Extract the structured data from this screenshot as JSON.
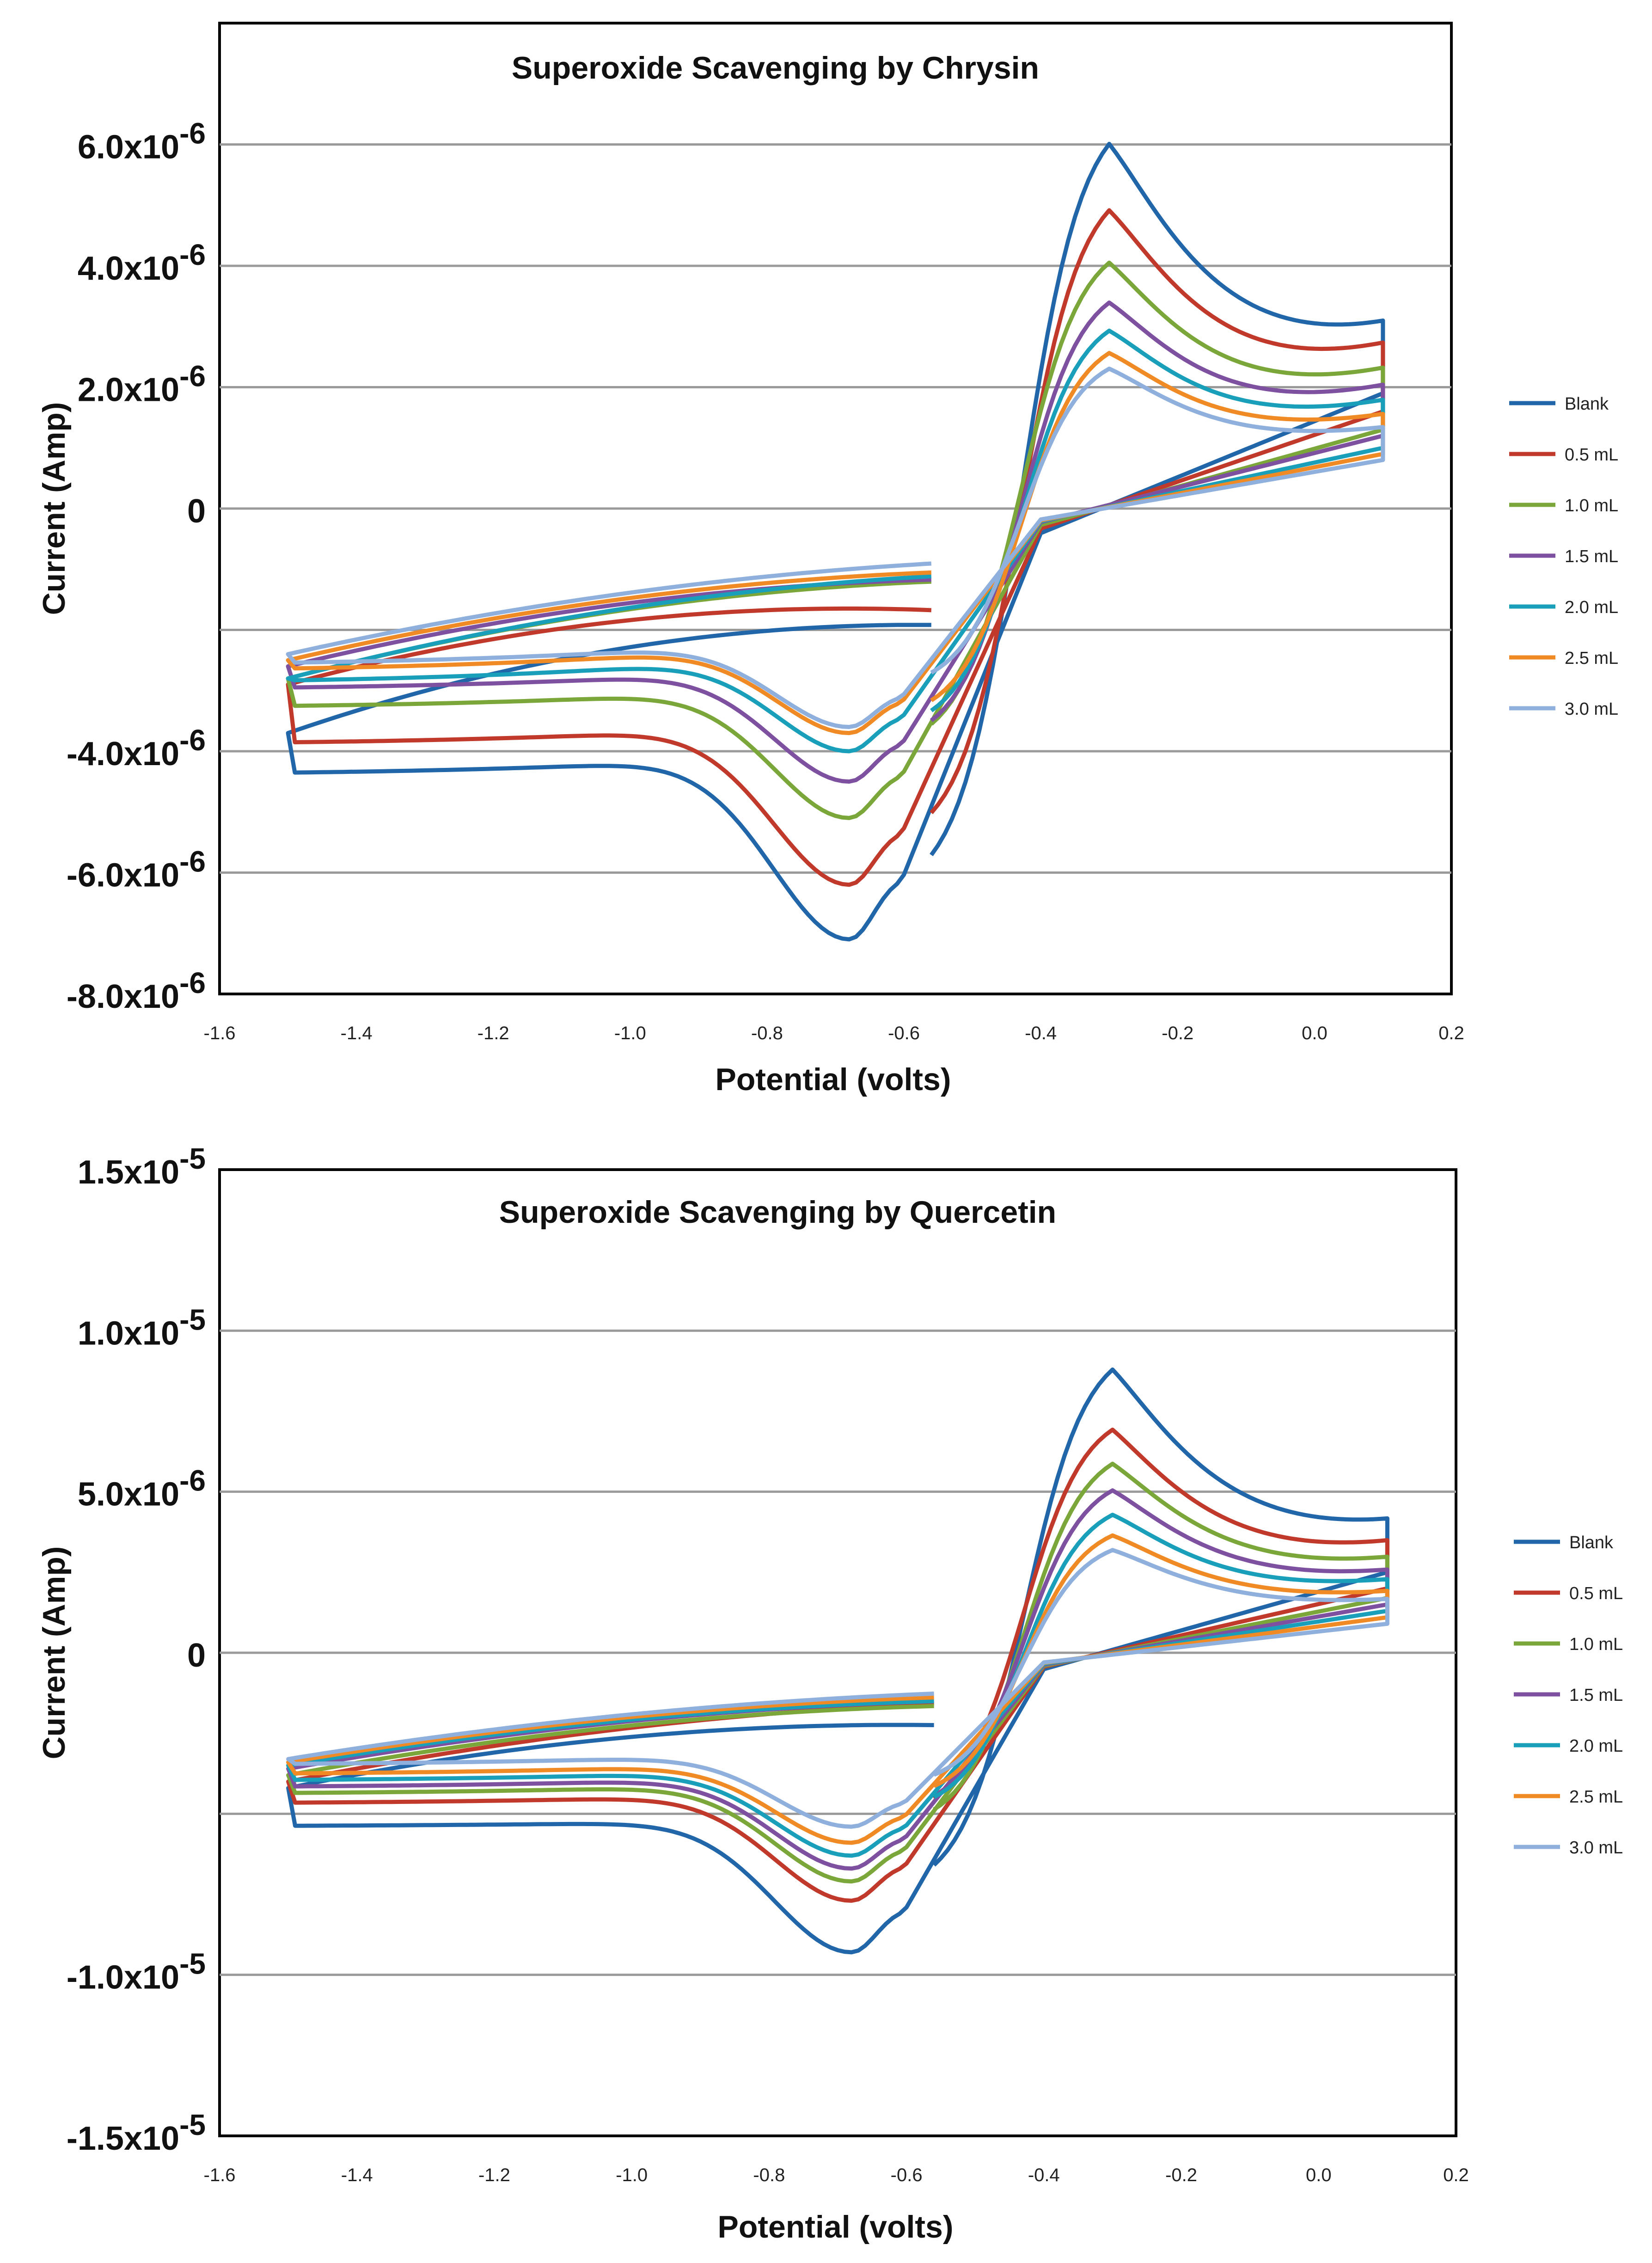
{
  "colors": {
    "Blank": "#2266aa",
    "0.5 mL": "#c0392b",
    "1.0 mL": "#7aa63a",
    "1.5 mL": "#7e50a0",
    "2.0 mL": "#1a9fba",
    "2.5 mL": "#f08a24",
    "3.0 mL": "#8fb0dd"
  },
  "chart_data": [
    {
      "type": "line",
      "title": "Superoxide Scavenging by Chrysin",
      "xlabel": "Potential (volts)",
      "ylabel": "Current (Amp)",
      "xlim": [
        -1.6,
        0.2
      ],
      "ylim": [
        -8e-06,
        8e-06
      ],
      "xticks": [
        -1.6,
        -1.4,
        -1.2,
        -1.0,
        -0.8,
        -0.6,
        -0.4,
        -0.2,
        0.0,
        0.2
      ],
      "xtick_labels": [
        "-1.6",
        "-1.4",
        "-1.2",
        "-1.0",
        "-0.8",
        "-0.6",
        "-0.4",
        "-0.2",
        "0.0",
        "0.2"
      ],
      "yticks": [
        {
          "value": 6e-06,
          "mant": "6.0x10",
          "exp": "-6"
        },
        {
          "value": 4e-06,
          "mant": "4.0x10",
          "exp": "-6"
        },
        {
          "value": 2e-06,
          "mant": "2.0x10",
          "exp": "-6"
        },
        {
          "value": 0,
          "mant": "0",
          "exp": ""
        },
        {
          "value": -2e-06,
          "mant": "",
          "exp": ""
        },
        {
          "value": -4e-06,
          "mant": "-4.0x10",
          "exp": "-6"
        },
        {
          "value": -6e-06,
          "mant": "-6.0x10",
          "exp": "-6"
        },
        {
          "value": -8e-06,
          "mant": "-8.0x10",
          "exp": "-6"
        }
      ],
      "legend_position": "right",
      "series": [
        {
          "name": "Blank",
          "anodic_peak": 6.7e-06,
          "cathodic_peak": -7.1e-06,
          "start": -4.4e-06,
          "upper_left": -3.7e-06,
          "end_low": 1.9e-06,
          "end_high": 2.4e-06,
          "ret_low": -2.7e-06,
          "fwd_start": -6.4e-06
        },
        {
          "name": "0.5 mL",
          "anodic_peak": 5.5e-06,
          "cathodic_peak": -6.2e-06,
          "start": -3.9e-06,
          "upper_left": -2.9e-06,
          "end_low": 1.6e-06,
          "end_high": 2.2e-06,
          "ret_low": -2.2e-06,
          "fwd_start": -5.6e-06
        },
        {
          "name": "1.0 mL",
          "anodic_peak": 4.5e-06,
          "cathodic_peak": -5.1e-06,
          "start": -3.3e-06,
          "upper_left": -2.8e-06,
          "end_low": 1.3e-06,
          "end_high": 1.9e-06,
          "ret_low": -1.8e-06,
          "fwd_start": -4e-06
        },
        {
          "name": "1.5 mL",
          "anodic_peak": 3.8e-06,
          "cathodic_peak": -4.5e-06,
          "start": -3e-06,
          "upper_left": -2.6e-06,
          "end_low": 1.2e-06,
          "end_high": 1.7e-06,
          "ret_low": -1.5e-06,
          "fwd_start": -3.9e-06
        },
        {
          "name": "2.0 mL",
          "anodic_peak": 3.3e-06,
          "cathodic_peak": -4e-06,
          "start": -2.9e-06,
          "upper_left": -2.8e-06,
          "end_low": 1e-06,
          "end_high": 1.5e-06,
          "ret_low": -1.4e-06,
          "fwd_start": -3.7e-06
        },
        {
          "name": "2.5 mL",
          "anodic_peak": 2.9e-06,
          "cathodic_peak": -3.7e-06,
          "start": -2.7e-06,
          "upper_left": -2.5e-06,
          "end_low": 9e-07,
          "end_high": 1.3e-06,
          "ret_low": -1.3e-06,
          "fwd_start": -3.5e-06
        },
        {
          "name": "3.0 mL",
          "anodic_peak": 2.6e-06,
          "cathodic_peak": -3.6e-06,
          "start": -2.6e-06,
          "upper_left": -2.4e-06,
          "end_low": 8e-07,
          "end_high": 1.1e-06,
          "ret_low": -1.2e-06,
          "fwd_start": -3e-06
        }
      ]
    },
    {
      "type": "line",
      "title": "Superoxide Scavenging by Quercetin",
      "xlabel": "Potential (volts)",
      "ylabel": "Current (Amp)",
      "xlim": [
        -1.6,
        0.2
      ],
      "ylim": [
        -1.5e-05,
        1.5e-05
      ],
      "xticks": [
        -1.6,
        -1.4,
        -1.2,
        -1.0,
        -0.8,
        -0.6,
        -0.4,
        -0.2,
        0.0,
        0.2
      ],
      "xtick_labels": [
        "-1.6",
        "-1.4",
        "-1.2",
        "-1.0",
        "-0.8",
        "-0.6",
        "-0.4",
        "-0.2",
        "0.0",
        "0.2"
      ],
      "yticks": [
        {
          "value": 1.5e-05,
          "mant": "1.5x10",
          "exp": "-5"
        },
        {
          "value": 1e-05,
          "mant": "1.0x10",
          "exp": "-5"
        },
        {
          "value": 5e-06,
          "mant": "5.0x10",
          "exp": "-6"
        },
        {
          "value": 0,
          "mant": "0",
          "exp": ""
        },
        {
          "value": -5e-06,
          "mant": "",
          "exp": ""
        },
        {
          "value": -1e-05,
          "mant": "-1.0x10",
          "exp": "-5"
        },
        {
          "value": -1.5e-05,
          "mant": "-1.5x10",
          "exp": "-5"
        }
      ],
      "legend_position": "right",
      "series": [
        {
          "name": "Blank",
          "anodic_peak": 9.7e-06,
          "cathodic_peak": -9.3e-06,
          "start": -5.4e-06,
          "upper_left": -4.2e-06,
          "end_low": 2.5e-06,
          "end_high": 3.1e-06,
          "ret_low": -3.4e-06,
          "fwd_start": -7.5e-06
        },
        {
          "name": "0.5 mL",
          "anodic_peak": 7.6e-06,
          "cathodic_peak": -7.7e-06,
          "start": -4.7e-06,
          "upper_left": -4e-06,
          "end_low": 2e-06,
          "end_high": 2.7e-06,
          "ret_low": -2.9e-06,
          "fwd_start": -5.2e-06
        },
        {
          "name": "1.0 mL",
          "anodic_peak": 6.5e-06,
          "cathodic_peak": -7.1e-06,
          "start": -4.4e-06,
          "upper_left": -3.8e-06,
          "end_low": 1.7e-06,
          "end_high": 2.3e-06,
          "ret_low": -2.7e-06,
          "fwd_start": -5.5e-06
        },
        {
          "name": "1.5 mL",
          "anodic_peak": 5.6e-06,
          "cathodic_peak": -6.7e-06,
          "start": -4.2e-06,
          "upper_left": -3.6e-06,
          "end_low": 1.5e-06,
          "end_high": 2e-06,
          "ret_low": -2.5e-06,
          "fwd_start": -5e-06
        },
        {
          "name": "2.0 mL",
          "anodic_peak": 4.8e-06,
          "cathodic_peak": -6.3e-06,
          "start": -4e-06,
          "upper_left": -3.5e-06,
          "end_low": 1.3e-06,
          "end_high": 1.8e-06,
          "ret_low": -2.3e-06,
          "fwd_start": -5e-06
        },
        {
          "name": "2.5 mL",
          "anodic_peak": 4.1e-06,
          "cathodic_peak": -5.9e-06,
          "start": -3.8e-06,
          "upper_left": -3.4e-06,
          "end_low": 1.1e-06,
          "end_high": 1.5e-06,
          "ret_low": -2.1e-06,
          "fwd_start": -4.6e-06
        },
        {
          "name": "3.0 mL",
          "anodic_peak": 3.6e-06,
          "cathodic_peak": -5.4e-06,
          "start": -3.5e-06,
          "upper_left": -3.3e-06,
          "end_low": 9e-07,
          "end_high": 1.3e-06,
          "ret_low": -2e-06,
          "fwd_start": -4.2e-06
        }
      ]
    }
  ]
}
